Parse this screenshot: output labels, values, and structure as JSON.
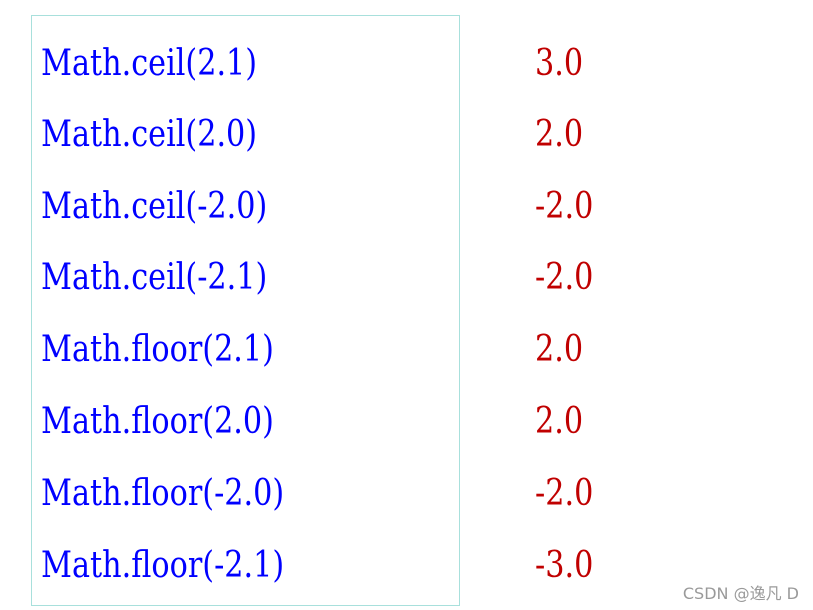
{
  "rows": [
    {
      "expr": "Math.ceil(2.1)",
      "result": "3.0"
    },
    {
      "expr": "Math.ceil(2.0)",
      "result": "2.0"
    },
    {
      "expr": "Math.ceil(-2.0)",
      "result": "-2.0"
    },
    {
      "expr": "Math.ceil(-2.1)",
      "result": "-2.0"
    },
    {
      "expr": "Math.floor(2.1)",
      "result": "2.0"
    },
    {
      "expr": "Math.floor(2.0)",
      "result": "2.0"
    },
    {
      "expr": "Math.floor(-2.0)",
      "result": "-2.0"
    },
    {
      "expr": "Math.floor(-2.1)",
      "result": "-3.0"
    }
  ],
  "colors": {
    "expr": "#0000ff",
    "result": "#c00000",
    "border": "#a8e0dc"
  },
  "watermark": "CSDN @逸凡 D"
}
